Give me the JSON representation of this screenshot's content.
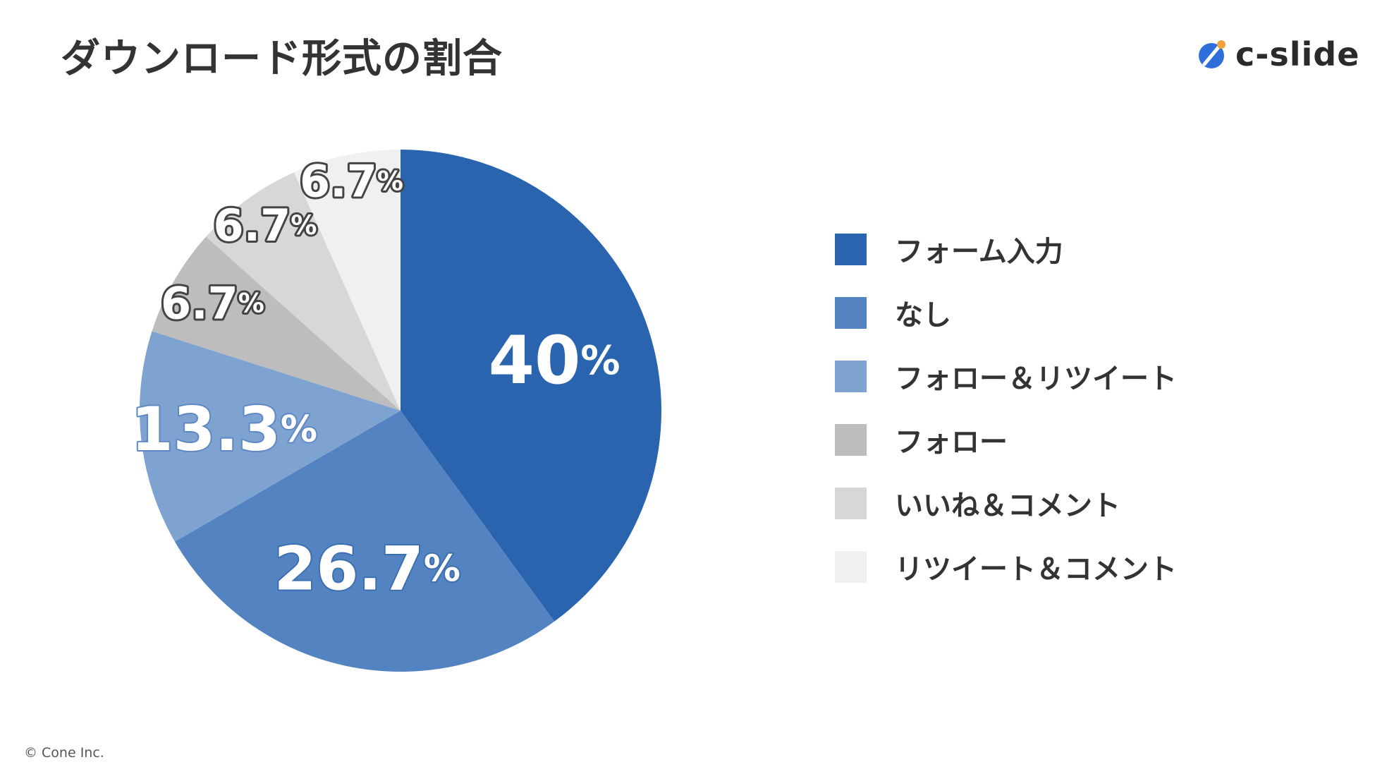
{
  "title": "ダウンロード形式の割合",
  "logo": {
    "text": "c-slide",
    "icon": "c-slide-logo-icon",
    "colors": {
      "primary": "#2e6fdb",
      "accent": "#f2a23a"
    }
  },
  "footer": "© Cone Inc.",
  "chart_data": {
    "type": "pie",
    "title": "ダウンロード形式の割合",
    "start_angle_deg": 0,
    "direction": "clockwise",
    "legend_position": "right",
    "slices": [
      {
        "label": "フォーム入力",
        "value": 40,
        "display": "40",
        "color": "#2b64ae",
        "text_color": "#ffffff",
        "outline": "#2b64ae"
      },
      {
        "label": "なし",
        "value": 26.7,
        "display": "26.7",
        "color": "#5383c1",
        "text_color": "#ffffff",
        "outline": "#3d6fb0"
      },
      {
        "label": "フォロー＆リツイート",
        "value": 13.3,
        "display": "13.3",
        "color": "#7fa3d1",
        "text_color": "#ffffff",
        "outline": "#5e88c4"
      },
      {
        "label": "フォロー",
        "value": 6.7,
        "display": "6.7",
        "color": "#bdbdbd",
        "text_color": "#ffffff",
        "outline": "#444444"
      },
      {
        "label": "いいね＆コメント",
        "value": 6.7,
        "display": "6.7",
        "color": "#d7d7d7",
        "text_color": "#ffffff",
        "outline": "#444444"
      },
      {
        "label": "リツイート＆コメント",
        "value": 6.7,
        "display": "6.7",
        "color": "#f0f0f0",
        "text_color": "#ffffff",
        "outline": "#444444"
      }
    ],
    "percent_suffix": "%"
  }
}
